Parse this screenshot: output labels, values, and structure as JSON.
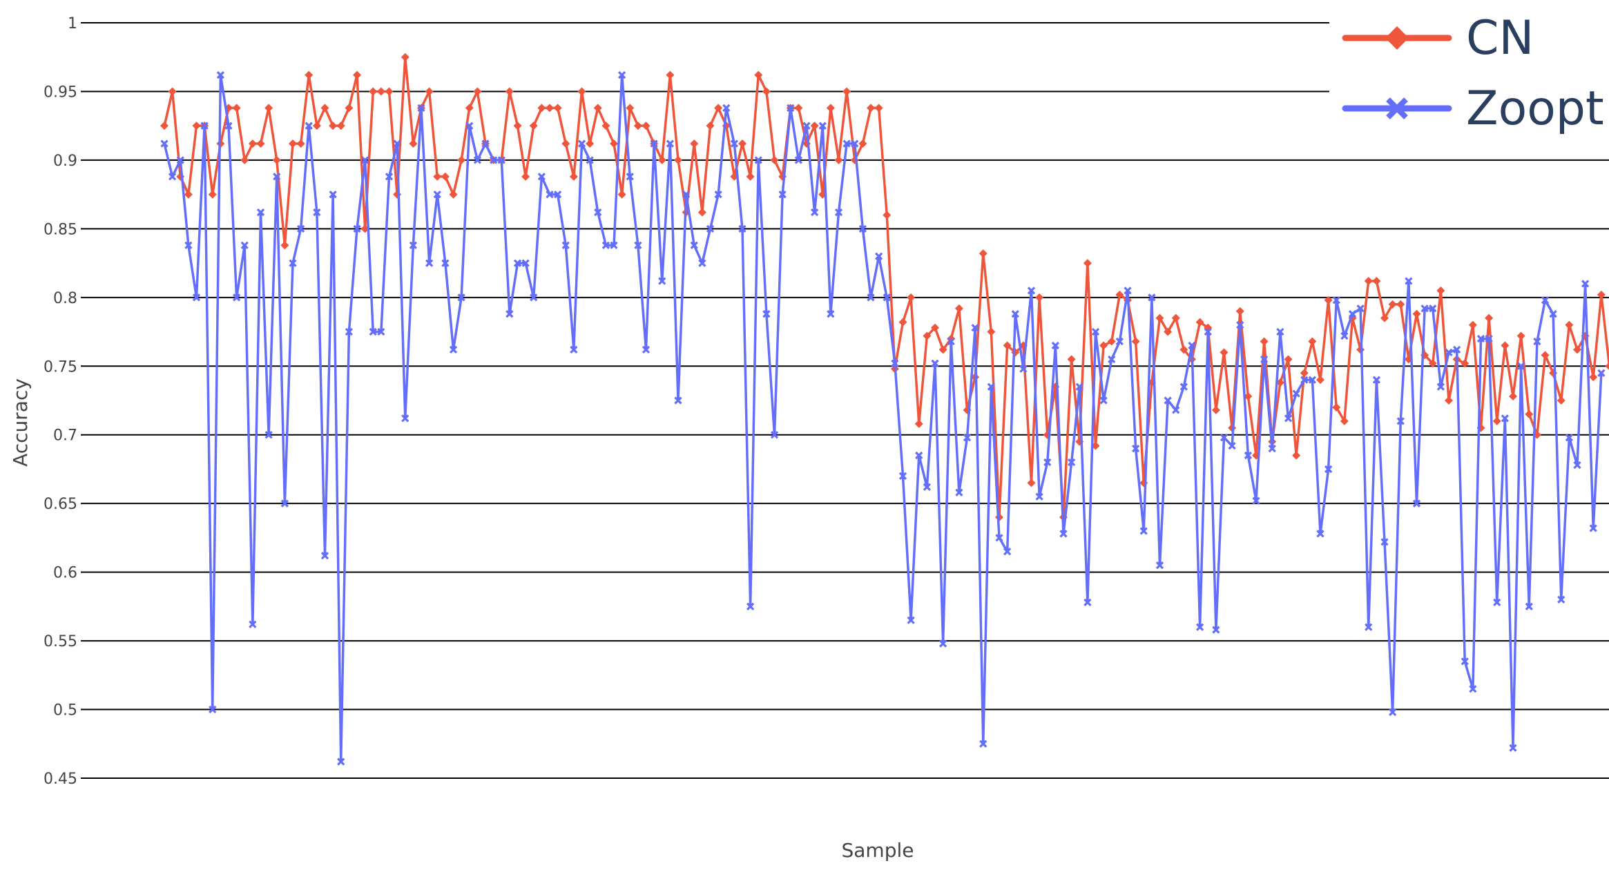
{
  "chart_data": {
    "type": "line",
    "title": "",
    "xlabel": "Sample",
    "ylabel": "Accuracy",
    "ylim": [
      0.45,
      1.0
    ],
    "yticks": [
      "1",
      "0.95",
      "0.9",
      "0.85",
      "0.8",
      "0.75",
      "0.7",
      "0.65",
      "0.6",
      "0.55",
      "0.5",
      "0.45"
    ],
    "grid": true,
    "legend_position": "top-right",
    "x_start": 1,
    "series": [
      {
        "name": "CN",
        "color": "#ef553b",
        "marker": "diamond",
        "values": [
          0.925,
          0.95,
          0.888,
          0.875,
          0.925,
          0.925,
          0.875,
          0.912,
          0.938,
          0.938,
          0.9,
          0.912,
          0.912,
          0.938,
          0.9,
          0.838,
          0.912,
          0.912,
          0.962,
          0.925,
          0.938,
          0.925,
          0.925,
          0.938,
          0.962,
          0.85,
          0.95,
          0.95,
          0.95,
          0.875,
          0.975,
          0.912,
          0.938,
          0.95,
          0.888,
          0.888,
          0.875,
          0.9,
          0.938,
          0.95,
          0.912,
          0.9,
          0.9,
          0.95,
          0.925,
          0.888,
          0.925,
          0.938,
          0.938,
          0.938,
          0.912,
          0.888,
          0.95,
          0.912,
          0.938,
          0.925,
          0.912,
          0.875,
          0.938,
          0.925,
          0.925,
          0.912,
          0.9,
          0.962,
          0.9,
          0.862,
          0.912,
          0.862,
          0.925,
          0.938,
          0.925,
          0.888,
          0.912,
          0.888,
          0.962,
          0.95,
          0.9,
          0.888,
          0.938,
          0.938,
          0.912,
          0.925,
          0.875,
          0.938,
          0.9,
          0.95,
          0.9,
          0.912,
          0.938,
          0.938,
          0.86,
          0.748,
          0.782,
          0.8,
          0.708,
          0.772,
          0.778,
          0.762,
          0.77,
          0.792,
          0.718,
          0.742,
          0.832,
          0.775,
          0.64,
          0.765,
          0.76,
          0.765,
          0.665,
          0.8,
          0.7,
          0.735,
          0.64,
          0.755,
          0.695,
          0.825,
          0.692,
          0.765,
          0.768,
          0.802,
          0.798,
          0.768,
          0.665,
          0.738,
          0.785,
          0.775,
          0.785,
          0.762,
          0.755,
          0.782,
          0.778,
          0.718,
          0.76,
          0.705,
          0.79,
          0.728,
          0.685,
          0.768,
          0.695,
          0.738,
          0.755,
          0.685,
          0.745,
          0.768,
          0.74,
          0.798,
          0.72,
          0.71,
          0.785,
          0.762,
          0.812,
          0.812,
          0.785,
          0.795,
          0.795,
          0.755,
          0.788,
          0.758,
          0.752,
          0.805,
          0.725,
          0.755,
          0.752,
          0.78,
          0.705,
          0.785,
          0.71,
          0.765,
          0.728,
          0.772,
          0.715,
          0.7,
          0.758,
          0.745,
          0.725,
          0.78,
          0.762,
          0.772,
          0.742,
          0.802,
          0.75
        ]
      },
      {
        "name": "Zoopt",
        "color": "#636efa",
        "marker": "x",
        "values": [
          0.912,
          0.888,
          0.9,
          0.838,
          0.8,
          0.925,
          0.5,
          0.962,
          0.925,
          0.8,
          0.838,
          0.562,
          0.862,
          0.7,
          0.888,
          0.65,
          0.825,
          0.85,
          0.925,
          0.862,
          0.612,
          0.875,
          0.462,
          0.775,
          0.85,
          0.9,
          0.775,
          0.775,
          0.888,
          0.912,
          0.712,
          0.838,
          0.938,
          0.825,
          0.875,
          0.825,
          0.762,
          0.8,
          0.925,
          0.9,
          0.912,
          0.9,
          0.9,
          0.788,
          0.825,
          0.825,
          0.8,
          0.888,
          0.875,
          0.875,
          0.838,
          0.762,
          0.912,
          0.9,
          0.862,
          0.838,
          0.838,
          0.962,
          0.888,
          0.838,
          0.762,
          0.912,
          0.812,
          0.912,
          0.725,
          0.875,
          0.838,
          0.825,
          0.85,
          0.875,
          0.938,
          0.912,
          0.85,
          0.575,
          0.9,
          0.788,
          0.7,
          0.875,
          0.938,
          0.9,
          0.925,
          0.862,
          0.925,
          0.788,
          0.862,
          0.912,
          0.912,
          0.85,
          0.8,
          0.83,
          0.8,
          0.752,
          0.67,
          0.565,
          0.685,
          0.662,
          0.752,
          0.548,
          0.768,
          0.658,
          0.698,
          0.778,
          0.475,
          0.735,
          0.625,
          0.615,
          0.788,
          0.748,
          0.805,
          0.655,
          0.68,
          0.765,
          0.628,
          0.68,
          0.735,
          0.578,
          0.775,
          0.725,
          0.755,
          0.768,
          0.805,
          0.69,
          0.63,
          0.8,
          0.605,
          0.725,
          0.718,
          0.735,
          0.765,
          0.56,
          0.775,
          0.558,
          0.698,
          0.692,
          0.78,
          0.685,
          0.652,
          0.755,
          0.69,
          0.775,
          0.712,
          0.73,
          0.74,
          0.74,
          0.628,
          0.675,
          0.798,
          0.772,
          0.788,
          0.792,
          0.56,
          0.74,
          0.622,
          0.498,
          0.71,
          0.812,
          0.65,
          0.792,
          0.792,
          0.735,
          0.76,
          0.762,
          0.535,
          0.515,
          0.77,
          0.77,
          0.578,
          0.712,
          0.472,
          0.75,
          0.575,
          0.768,
          0.798,
          0.788,
          0.58,
          0.698,
          0.678,
          0.81,
          0.632,
          0.745
        ]
      }
    ]
  }
}
